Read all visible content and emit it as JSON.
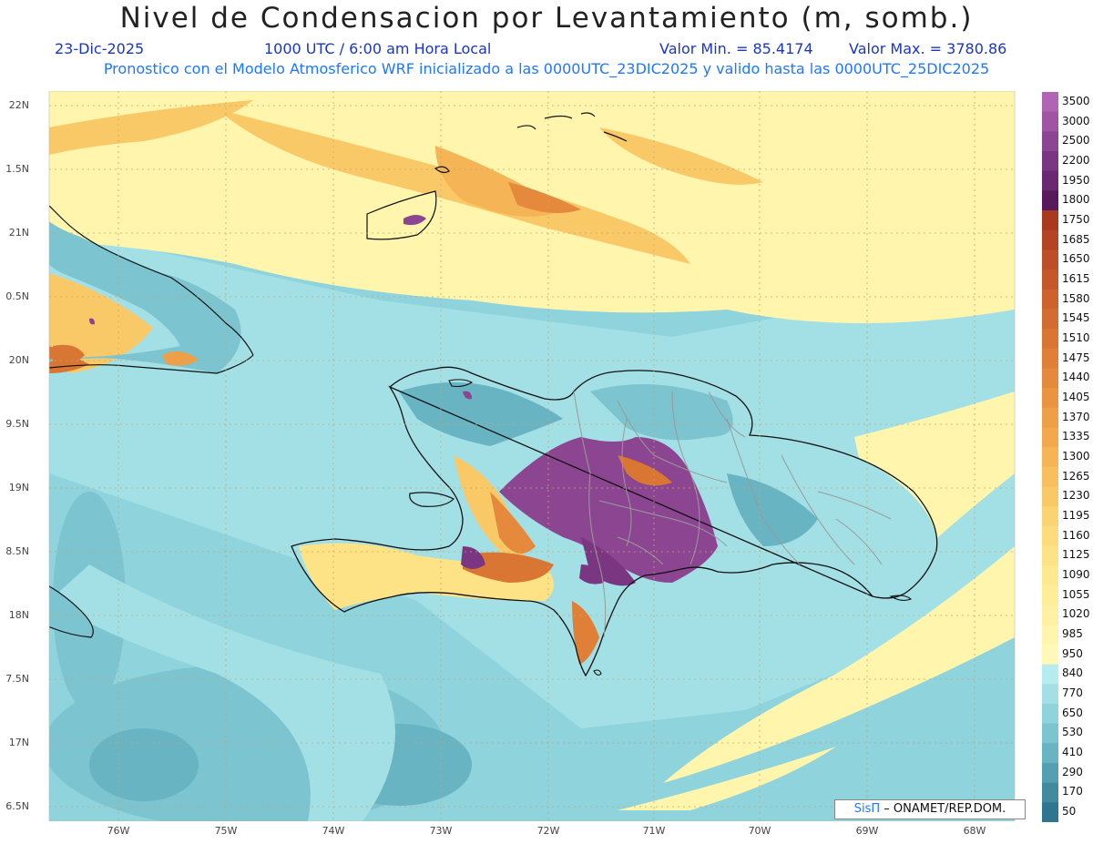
{
  "header": {
    "title": "Nivel de Condensacion por Levantamiento (m, somb.)",
    "date": "23-Dic-2025",
    "time": "1000 UTC / 6:00 am Hora Local",
    "valmin": "Valor Min. = 85.4174",
    "valmax": "Valor Max. = 3780.86",
    "model_line": "Pronostico con el Modelo Atmosferico WRF inicializado a las 0000UTC_23DIC2025 y valido hasta las  0000UTC_25DIC2025"
  },
  "axes": {
    "lat_labels": [
      "22N",
      "1.5N",
      "21N",
      "0.5N",
      "20N",
      "9.5N",
      "19N",
      "8.5N",
      "18N",
      "7.5N",
      "17N",
      "6.5N"
    ],
    "lon_labels": [
      "76W",
      "75W",
      "74W",
      "73W",
      "72W",
      "71W",
      "70W",
      "69W",
      "68W"
    ]
  },
  "colorbar": {
    "labels": [
      "3500",
      "3000",
      "2500",
      "2200",
      "1950",
      "1800",
      "1750",
      "1685",
      "1650",
      "1615",
      "1580",
      "1545",
      "1510",
      "1475",
      "1440",
      "1405",
      "1370",
      "1335",
      "1300",
      "1265",
      "1230",
      "1195",
      "1160",
      "1125",
      "1090",
      "1055",
      "1020",
      "985",
      "950",
      "840",
      "770",
      "650",
      "530",
      "410",
      "290",
      "170",
      "50"
    ],
    "colors": [
      "#b264b4",
      "#a055a3",
      "#8c4590",
      "#7a3680",
      "#6a2870",
      "#571a5c",
      "#a83a20",
      "#b24524",
      "#bb4f28",
      "#c4582b",
      "#cc622e",
      "#d36c31",
      "#d97634",
      "#e08038",
      "#e58a3c",
      "#ea9441",
      "#ee9f47",
      "#f2a94d",
      "#f5b455",
      "#f7bf5e",
      "#f9c968",
      "#fbd372",
      "#fcdc7c",
      "#fde386",
      "#fee890",
      "#feed99",
      "#fef1a3",
      "#fff5ad",
      "#fff8b8",
      "#b7ecef",
      "#a3e0e6",
      "#8fd3dc",
      "#7cc4d0",
      "#68b4c3",
      "#559fb2",
      "#428aa0",
      "#2f7590"
    ]
  },
  "credit": {
    "logo": "SisΠ",
    "text": "– ONAMET/REP.DOM."
  },
  "map_colors": {
    "ocean": "#8fd3dc",
    "shallow": "#a3e0e6",
    "deep": "#68b4c3",
    "yellow": "#fff5ad",
    "orange": "#f5b455",
    "purple": "#8c4590",
    "coast": "#111111",
    "border": "#9a9a9a"
  }
}
